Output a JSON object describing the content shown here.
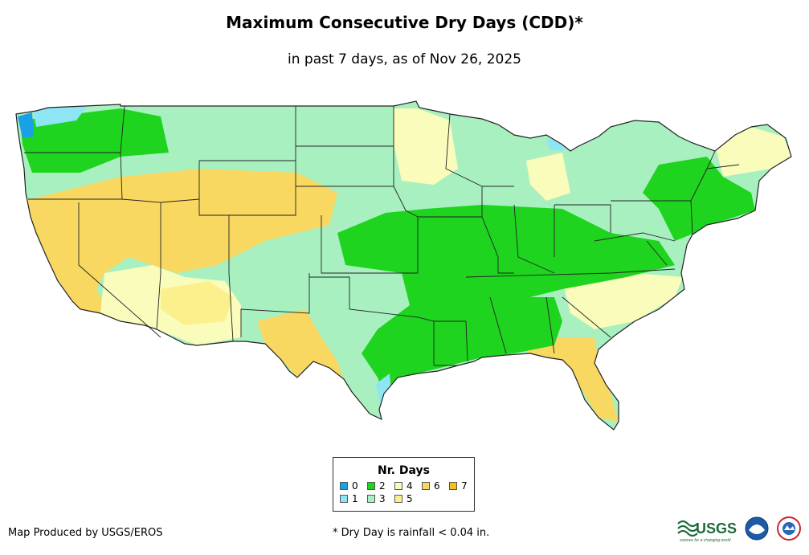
{
  "header": {
    "title": "Maximum Consecutive Dry Days (CDD)*",
    "subtitle": "in past 7 days, as of Nov 26, 2025"
  },
  "legend": {
    "title": "Nr. Days",
    "items": [
      {
        "label": "0",
        "color": "#1aa0e6"
      },
      {
        "label": "1",
        "color": "#8ee6f5"
      },
      {
        "label": "2",
        "color": "#1ed41e"
      },
      {
        "label": "3",
        "color": "#a8f0c0"
      },
      {
        "label": "4",
        "color": "#fafcbc"
      },
      {
        "label": "5",
        "color": "#fbf08c"
      },
      {
        "label": "6",
        "color": "#f8d860"
      },
      {
        "label": "7",
        "color": "#f4bf1f"
      }
    ]
  },
  "footer": {
    "credit": "Map Produced by USGS/EROS",
    "footnote": "* Dry Day is rainfall < 0.04 in.",
    "logo_text": "USGS",
    "logo_tagline": "science for a changing world"
  },
  "map": {
    "land_color": "#a8f0c0",
    "border_color": "#222222"
  }
}
